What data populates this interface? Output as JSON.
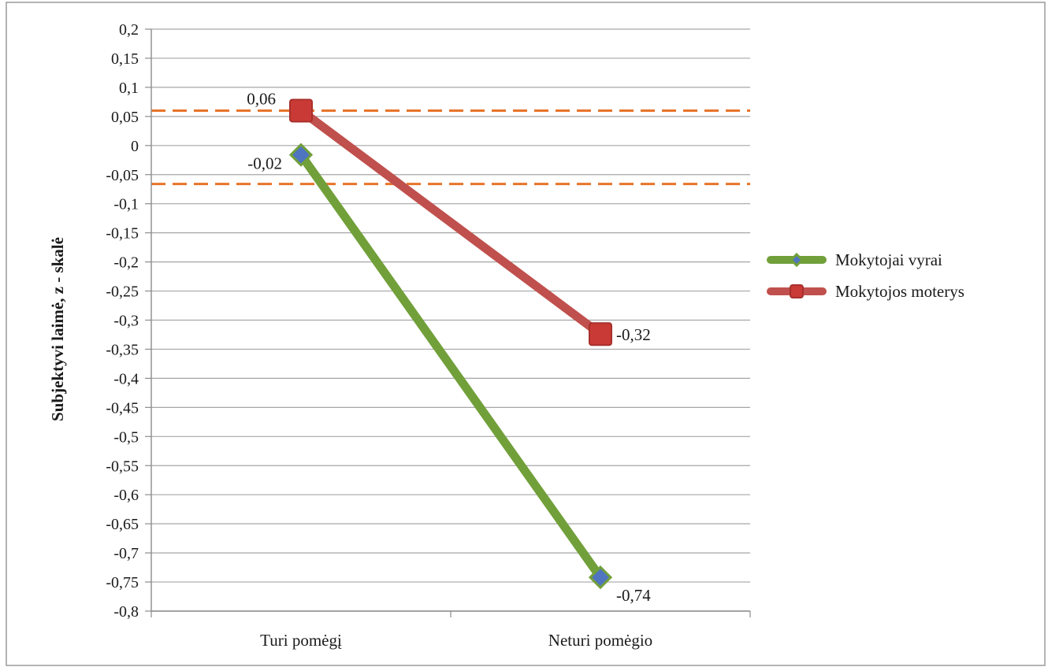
{
  "chart_data": {
    "type": "line",
    "title": "",
    "xlabel": "",
    "ylabel": "Subjektyvi laimė, z - skalė",
    "categories": [
      "Turi pomėgį",
      "Neturi pomėgio"
    ],
    "ylim": [
      -0.8,
      0.2
    ],
    "ytick_step": 0.05,
    "ytick_labels": [
      "0,2",
      "0,15",
      "0,1",
      "0,05",
      "0",
      "-0,05",
      "-0,1",
      "-0,15",
      "-0,2",
      "-0,25",
      "-0,3",
      "-0,35",
      "-0,4",
      "-0,45",
      "-0,5",
      "-0,55",
      "-0,6",
      "-0,65",
      "-0,7",
      "-0,75",
      "-0,8"
    ],
    "grid": true,
    "legend_position": "right",
    "reference_lines": [
      {
        "y": 0.06,
        "style": "dashed",
        "color": "#e8742a"
      },
      {
        "y": -0.066,
        "style": "dashed",
        "color": "#e8742a"
      }
    ],
    "series": [
      {
        "name": "Mokytojai vyrai",
        "values": [
          -0.016,
          -0.742
        ],
        "data_labels": [
          "-0,02",
          "-0,74"
        ],
        "line_color": "#71a03a",
        "marker": "diamond",
        "marker_color": "#4f74c0"
      },
      {
        "name": "Mokytojos moterys",
        "values": [
          0.06,
          -0.324
        ],
        "data_labels": [
          "0,06",
          "-0,32"
        ],
        "line_color": "#c0504d",
        "marker": "square",
        "marker_color": "#c93a36"
      }
    ]
  }
}
